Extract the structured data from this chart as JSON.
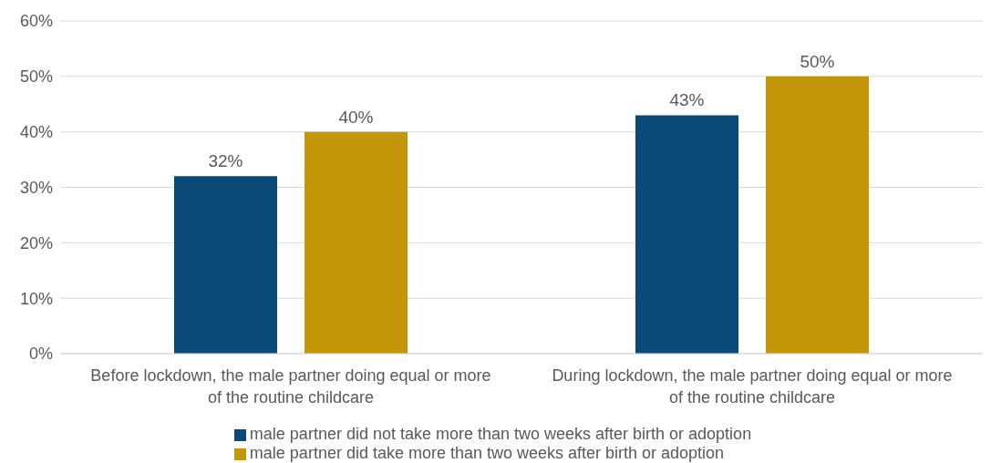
{
  "chart_data": {
    "type": "bar",
    "categories": [
      "Before lockdown, the male partner doing equal or more of the routine childcare",
      "During lockdown, the male partner doing equal or more of the routine childcare"
    ],
    "series": [
      {
        "name": "male partner did not take more than two weeks after birth or adoption",
        "color": "#0b4a78",
        "values": [
          32,
          43
        ],
        "value_labels": [
          "32%",
          "43%"
        ]
      },
      {
        "name": "male partner did take more than two weeks after birth or adoption",
        "color": "#c4970a",
        "values": [
          40,
          50
        ],
        "value_labels": [
          "40%",
          "50%"
        ]
      }
    ],
    "ylim": [
      0,
      60
    ],
    "yticks": [
      {
        "value": 0,
        "label": "0%"
      },
      {
        "value": 10,
        "label": "10%"
      },
      {
        "value": 20,
        "label": "20%"
      },
      {
        "value": 30,
        "label": "30%"
      },
      {
        "value": 40,
        "label": "40%"
      },
      {
        "value": 50,
        "label": "50%"
      },
      {
        "value": 60,
        "label": "60%"
      }
    ],
    "grid": "y",
    "legend": "bottom"
  }
}
